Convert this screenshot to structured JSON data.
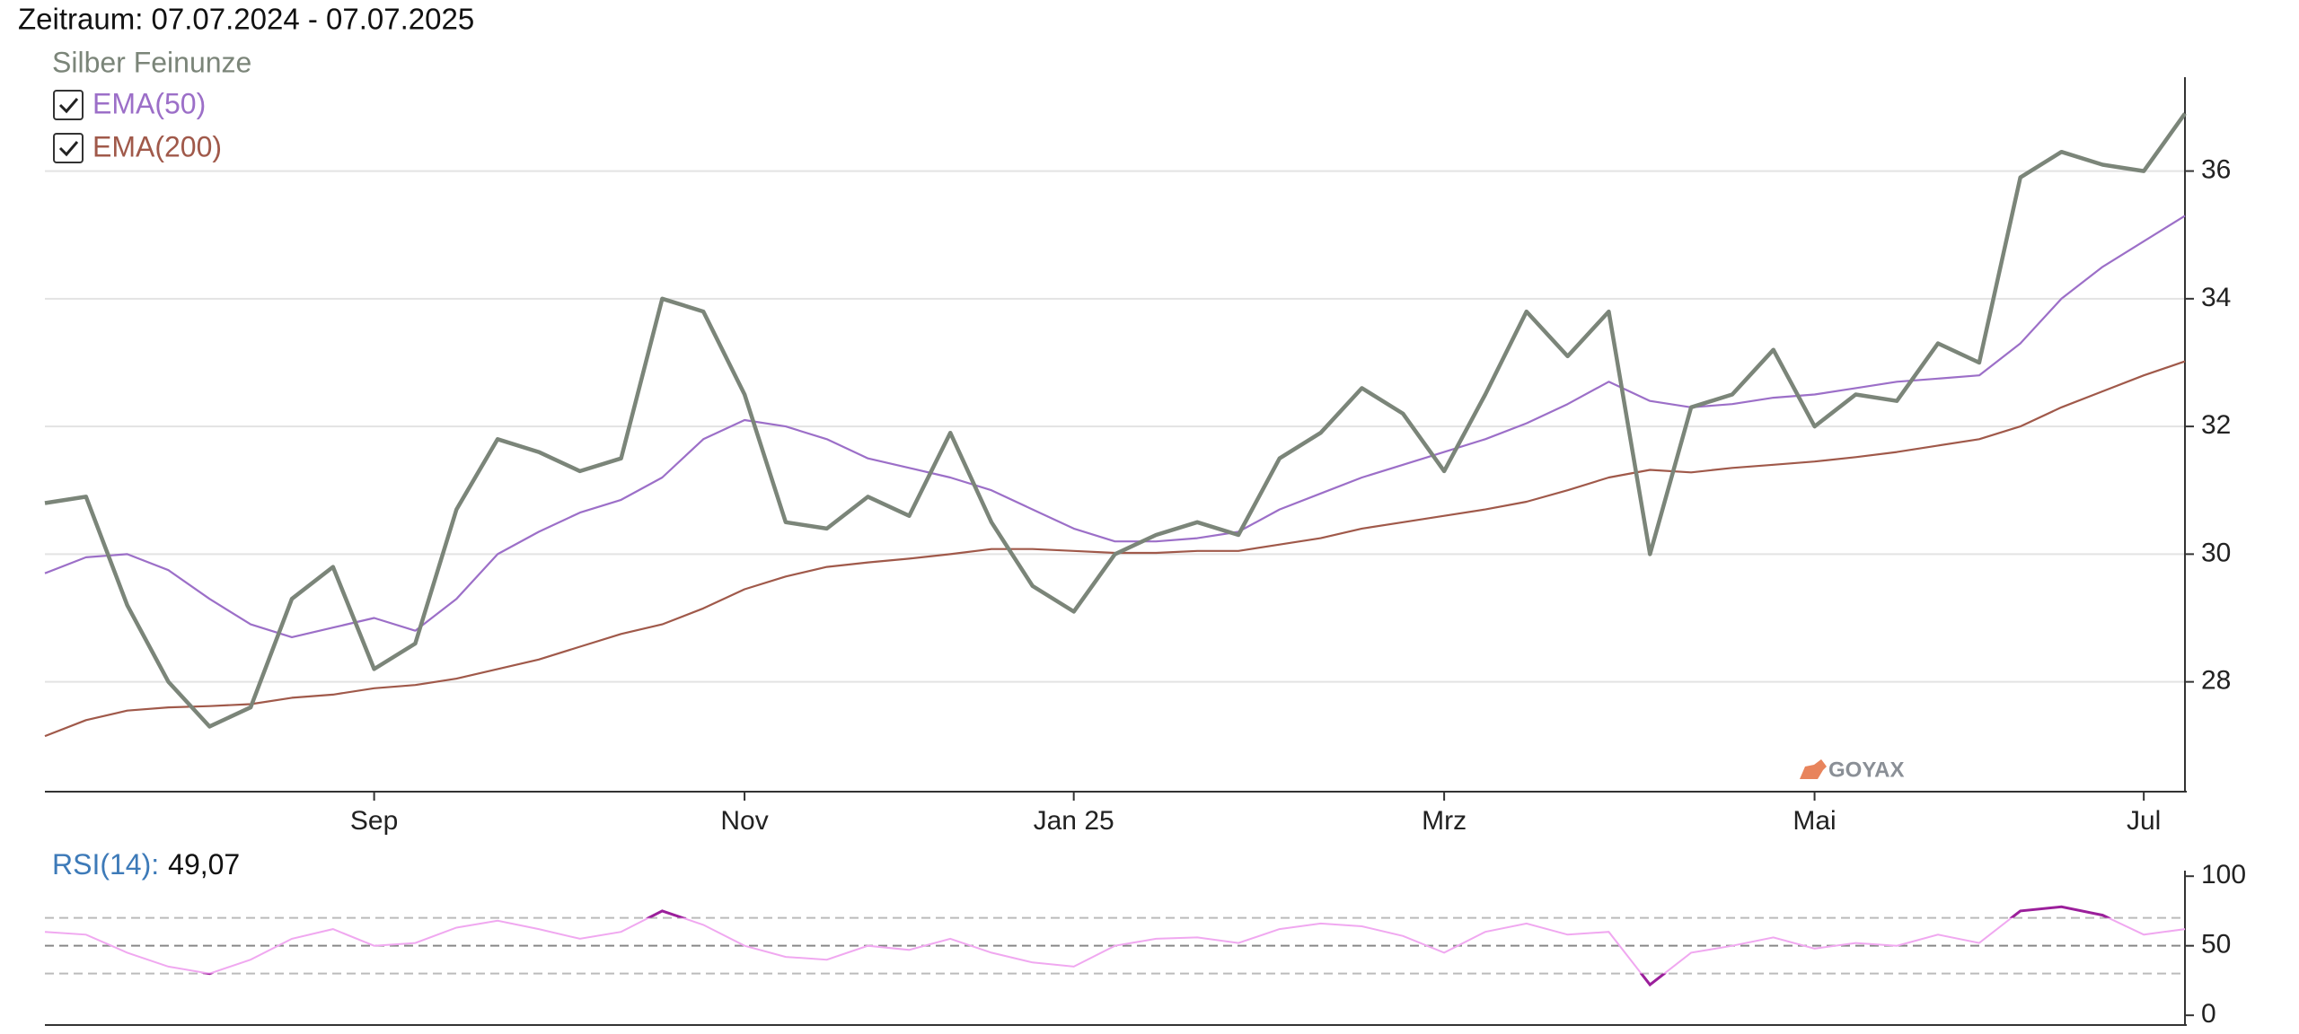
{
  "chart_data": [
    {
      "type": "line",
      "title": "Zeitraum: 07.07.2024 - 07.07.2025",
      "categories": [
        null,
        null,
        null,
        null,
        null,
        null,
        null,
        null,
        "Sep",
        null,
        null,
        null,
        null,
        null,
        null,
        null,
        null,
        "Nov",
        null,
        null,
        null,
        null,
        null,
        null,
        null,
        "Jan 25",
        null,
        null,
        null,
        null,
        null,
        null,
        null,
        null,
        "Mrz",
        null,
        null,
        null,
        null,
        null,
        null,
        null,
        null,
        "Mai",
        null,
        null,
        null,
        null,
        null,
        null,
        null,
        "Jul",
        null
      ],
      "series": [
        {
          "name": "Silber Feinunze",
          "color": "#7b8579",
          "values": [
            30.8,
            30.9,
            29.2,
            28.0,
            27.3,
            27.6,
            29.3,
            29.8,
            28.2,
            28.6,
            30.7,
            31.8,
            31.6,
            31.3,
            31.5,
            34.0,
            33.8,
            32.5,
            30.5,
            30.4,
            30.9,
            30.6,
            31.9,
            30.5,
            29.5,
            29.1,
            30.0,
            30.3,
            30.5,
            30.3,
            31.5,
            31.9,
            32.6,
            32.2,
            31.3,
            32.5,
            33.8,
            33.1,
            33.8,
            30.0,
            32.3,
            32.5,
            33.2,
            32.0,
            32.5,
            32.4,
            33.3,
            33.0,
            35.9,
            36.3,
            36.1,
            36.0,
            36.9
          ]
        },
        {
          "name": "EMA(50)",
          "color": "#9c6fc8",
          "values": [
            29.7,
            29.95,
            30.0,
            29.75,
            29.3,
            28.9,
            28.7,
            28.85,
            29.0,
            28.8,
            29.3,
            30.0,
            30.35,
            30.65,
            30.85,
            31.2,
            31.8,
            32.1,
            32.0,
            31.8,
            31.5,
            31.35,
            31.2,
            31.0,
            30.7,
            30.4,
            30.2,
            30.2,
            30.25,
            30.35,
            30.7,
            30.95,
            31.2,
            31.4,
            31.6,
            31.8,
            32.05,
            32.35,
            32.7,
            32.4,
            32.3,
            32.35,
            32.45,
            32.5,
            32.6,
            32.7,
            32.75,
            32.8,
            33.3,
            34.0,
            34.5,
            34.9,
            35.3
          ]
        },
        {
          "name": "EMA(200)",
          "color": "#a0594a",
          "values": [
            27.15,
            27.4,
            27.55,
            27.6,
            27.62,
            27.65,
            27.75,
            27.8,
            27.9,
            27.95,
            28.05,
            28.2,
            28.35,
            28.55,
            28.75,
            28.9,
            29.15,
            29.45,
            29.65,
            29.8,
            29.87,
            29.93,
            30.0,
            30.08,
            30.08,
            30.05,
            30.02,
            30.02,
            30.05,
            30.05,
            30.15,
            30.25,
            30.4,
            30.5,
            30.6,
            30.7,
            30.82,
            31.0,
            31.2,
            31.32,
            31.28,
            31.35,
            31.4,
            31.45,
            31.52,
            31.6,
            31.7,
            31.8,
            32.0,
            32.3,
            32.55,
            32.8,
            33.02
          ]
        }
      ],
      "ylim": [
        26.28,
        37.47
      ],
      "yticks": [
        28,
        30,
        32,
        34,
        36
      ],
      "grid": true,
      "watermark": "GOYAX"
    },
    {
      "type": "line",
      "series": [
        {
          "name": "RSI(14)",
          "color": "#f0a8f0",
          "values": [
            60,
            58,
            45,
            35,
            30,
            40,
            55,
            62,
            50,
            52,
            63,
            68,
            62,
            55,
            60,
            75,
            65,
            50,
            42,
            40,
            50,
            47,
            55,
            45,
            38,
            35,
            50,
            55,
            56,
            52,
            62,
            66,
            64,
            57,
            45,
            60,
            66,
            58,
            60,
            22,
            45,
            50,
            56,
            48,
            52,
            50,
            58,
            52,
            75,
            78,
            72,
            58,
            62
          ]
        }
      ],
      "current_label": "49,07",
      "ylim": [
        -7,
        104
      ],
      "yticks": [
        0,
        50,
        100
      ],
      "levels": [
        30,
        50,
        70
      ],
      "highlight_color": "#9b1f9b"
    }
  ]
}
